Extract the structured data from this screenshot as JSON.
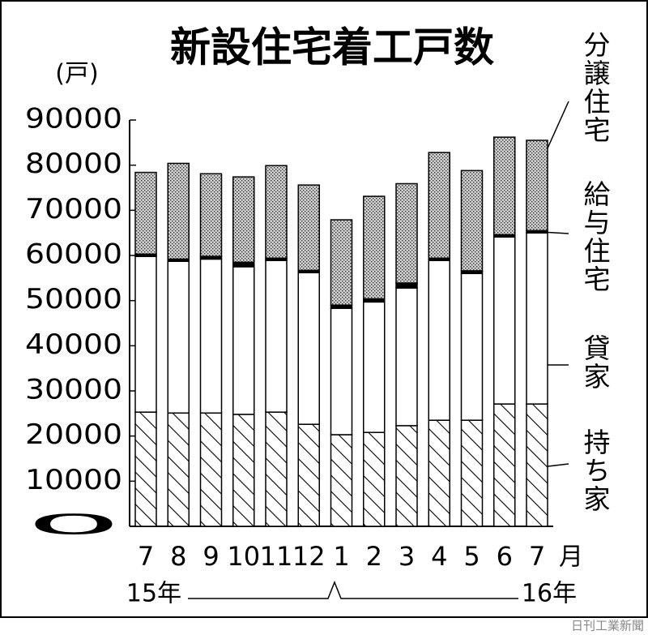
{
  "chart_data": {
    "type": "stacked_bar",
    "title": "新設住宅着工戸数",
    "y_unit": "(戸)",
    "x_unit": "月",
    "x_group_labels": [
      "15年",
      "16年"
    ],
    "source": "日刊工業新聞",
    "categories": [
      "7",
      "8",
      "9",
      "10",
      "11",
      "12",
      "1",
      "2",
      "3",
      "4",
      "5",
      "6",
      "7"
    ],
    "series": [
      {
        "name": "持ち家",
        "color": "hatch",
        "values": [
          25300,
          25100,
          25100,
          24800,
          25300,
          22600,
          20300,
          20800,
          22300,
          23500,
          23500,
          27100,
          27100
        ]
      },
      {
        "name": "貸家",
        "color": "white",
        "values": [
          34500,
          33600,
          34100,
          32700,
          33600,
          33600,
          28000,
          28900,
          30500,
          35400,
          32500,
          37000,
          37900
        ]
      },
      {
        "name": "給与住宅",
        "color": "black",
        "values": [
          500,
          500,
          600,
          1000,
          500,
          500,
          700,
          700,
          1100,
          500,
          600,
          500,
          500
        ]
      },
      {
        "name": "分譲住宅",
        "color": "dots",
        "values": [
          18100,
          21200,
          18300,
          18900,
          20500,
          18900,
          18900,
          22700,
          22000,
          23400,
          22200,
          21600,
          20000
        ]
      }
    ],
    "ylim": [
      0,
      90000
    ],
    "yticks": [
      0,
      10000,
      20000,
      30000,
      40000,
      50000,
      60000,
      70000,
      80000,
      90000
    ]
  }
}
